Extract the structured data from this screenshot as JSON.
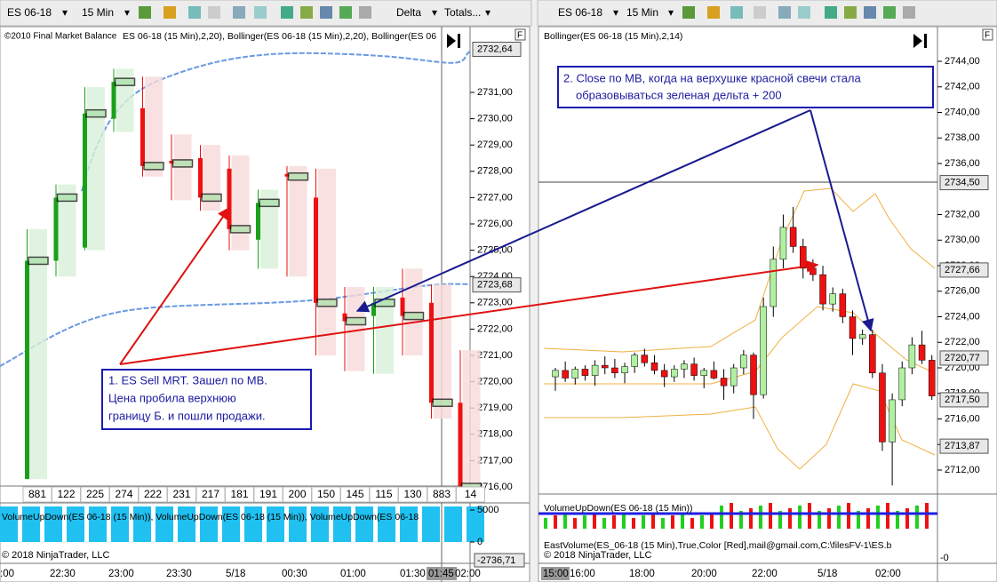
{
  "toolbar_left": {
    "instrument": "ES 06-18",
    "interval": "15 Min",
    "items": [
      "Delta",
      "Totals..."
    ]
  },
  "toolbar_right": {
    "instrument": "ES 06-18",
    "interval": "15 Min"
  },
  "left_pane": {
    "header": "©2010 Final Market Balance",
    "indicator": "ES 06-18 (15 Min),2,20), Bollinger(ES 06-18 (15 Min),2,20), Bollinger(ES 06",
    "panel_flag": "F",
    "yticks": [
      {
        "value": 2716,
        "label": "2716,00"
      },
      {
        "value": 2717,
        "label": "2717,00"
      },
      {
        "value": 2718,
        "label": "2718,00"
      },
      {
        "value": 2719,
        "label": "2719,00"
      },
      {
        "value": 2720,
        "label": "2720,00"
      },
      {
        "value": 2721,
        "label": "2721,00"
      },
      {
        "value": 2722,
        "label": "2722,00"
      },
      {
        "value": 2723,
        "label": "2723,00"
      },
      {
        "value": 2724,
        "label": "2724,00"
      },
      {
        "value": 2725,
        "label": "2725,00"
      },
      {
        "value": 2726,
        "label": "2726,00"
      },
      {
        "value": 2727,
        "label": "2727,00"
      },
      {
        "value": 2728,
        "label": "2728,00"
      },
      {
        "value": 2729,
        "label": "2729,00"
      },
      {
        "value": 2730,
        "label": "2730,00"
      },
      {
        "value": 2731,
        "label": "2731,00"
      }
    ],
    "markers": [
      {
        "value": 2732.64,
        "label": "2732,64"
      },
      {
        "value": 2723.68,
        "label": "2723,68"
      }
    ],
    "candles": [
      [
        2716.3,
        2725.8,
        2716.3,
        2724.6
      ],
      [
        2724.6,
        2727.5,
        2724.0,
        2727.0
      ],
      [
        2725.1,
        2731.2,
        2725.0,
        2730.2
      ],
      [
        2730.0,
        2731.9,
        2729.5,
        2731.4
      ],
      [
        2730.4,
        2731.6,
        2727.8,
        2728.2
      ],
      [
        2728.4,
        2729.4,
        2726.9,
        2728.3
      ],
      [
        2728.5,
        2729.0,
        2726.5,
        2727.0
      ],
      [
        2728.1,
        2728.6,
        2725.0,
        2725.8
      ],
      [
        2725.4,
        2727.3,
        2724.3,
        2726.8
      ],
      [
        2727.9,
        2728.2,
        2724.0,
        2727.8
      ],
      [
        2727.0,
        2728.1,
        2721.0,
        2723.0
      ],
      [
        2722.6,
        2723.6,
        2720.4,
        2722.3
      ],
      [
        2722.5,
        2723.6,
        2720.3,
        2723.0
      ],
      [
        2723.2,
        2724.3,
        2721.0,
        2722.5
      ],
      [
        2723.0,
        2723.7,
        2718.6,
        2719.2
      ],
      [
        2719.2,
        2721.2,
        2716.0,
        2716.0
      ]
    ],
    "volumes": [
      881,
      122,
      225,
      274,
      222,
      231,
      217,
      181,
      191,
      200,
      150,
      145,
      115,
      130,
      883,
      14
    ],
    "volume_indicator": "VolumeUpDown(ES 06-18 (15 Min)), VolumeUpDown(ES 06-18 (15 Min)), VolumeUpDown(ES 06-18",
    "volume_ticks": [
      5000,
      0
    ],
    "bottom_marker": "-2736,71",
    "copyright": "© 2018 NinjaTrader, LLC",
    "times": [
      ":00",
      "22:30",
      "23:00",
      "23:30",
      "5/18",
      "00:30",
      "01:00",
      "01:30",
      "01:45",
      "02:00"
    ]
  },
  "right_pane": {
    "indicator": "Bollinger(ES 06-18 (15 Min),2,14)",
    "panel_flag": "F",
    "yticks": [
      {
        "value": 2712,
        "label": "2712,00"
      },
      {
        "value": 2714,
        "label": "2714,00"
      },
      {
        "value": 2716,
        "label": "2716,00"
      },
      {
        "value": 2718,
        "label": "2718,00"
      },
      {
        "value": 2720,
        "label": "2720,00"
      },
      {
        "value": 2722,
        "label": "2722,00"
      },
      {
        "value": 2724,
        "label": "2724,00"
      },
      {
        "value": 2726,
        "label": "2726,00"
      },
      {
        "value": 2728,
        "label": "2728,00"
      },
      {
        "value": 2730,
        "label": "2730,00"
      },
      {
        "value": 2732,
        "label": "2732,00"
      },
      {
        "value": 2736,
        "label": "2736,00"
      },
      {
        "value": 2738,
        "label": "2738,00"
      },
      {
        "value": 2740,
        "label": "2740,00"
      },
      {
        "value": 2742,
        "label": "2742,00"
      },
      {
        "value": 2744,
        "label": "2744,00"
      }
    ],
    "markers": [
      {
        "value": 2734.5,
        "label": "2734,50"
      },
      {
        "value": 2727.66,
        "label": "2727,66"
      },
      {
        "value": 2720.77,
        "label": "2720,77"
      },
      {
        "value": 2717.5,
        "label": "2717,50"
      },
      {
        "value": 2713.87,
        "label": "2713,87"
      }
    ],
    "candles": [
      [
        2719.3,
        2720.0,
        2718.2,
        2719.8
      ],
      [
        2719.8,
        2720.5,
        2718.9,
        2719.2
      ],
      [
        2719.2,
        2720.1,
        2718.7,
        2719.9
      ],
      [
        2719.9,
        2720.2,
        2719.0,
        2719.4
      ],
      [
        2719.4,
        2720.6,
        2718.6,
        2720.2
      ],
      [
        2720.2,
        2720.9,
        2719.5,
        2720.0
      ],
      [
        2720.0,
        2720.7,
        2719.2,
        2719.6
      ],
      [
        2719.6,
        2720.4,
        2718.8,
        2720.1
      ],
      [
        2720.1,
        2721.2,
        2719.6,
        2721.0
      ],
      [
        2721.0,
        2721.5,
        2720.1,
        2720.4
      ],
      [
        2720.4,
        2721.0,
        2719.5,
        2719.8
      ],
      [
        2719.8,
        2720.3,
        2718.5,
        2719.3
      ],
      [
        2719.3,
        2720.2,
        2718.9,
        2719.9
      ],
      [
        2719.9,
        2720.6,
        2719.2,
        2720.3
      ],
      [
        2720.3,
        2720.8,
        2719.0,
        2719.4
      ],
      [
        2719.4,
        2720.0,
        2718.4,
        2719.8
      ],
      [
        2719.8,
        2720.5,
        2719.1,
        2719.2
      ],
      [
        2719.2,
        2719.9,
        2717.5,
        2718.6
      ],
      [
        2718.6,
        2720.3,
        2718.0,
        2720.0
      ],
      [
        2720.0,
        2721.4,
        2719.5,
        2721.0
      ],
      [
        2721.0,
        2721.2,
        2716.0,
        2717.9
      ],
      [
        2717.9,
        2725.5,
        2717.6,
        2724.8
      ],
      [
        2724.8,
        2729.5,
        2724.0,
        2728.5
      ],
      [
        2728.5,
        2732.0,
        2727.8,
        2731.0
      ],
      [
        2731.0,
        2732.6,
        2729.0,
        2729.5
      ],
      [
        2729.5,
        2730.1,
        2727.0,
        2727.8
      ],
      [
        2727.8,
        2728.5,
        2726.8,
        2727.3
      ],
      [
        2727.3,
        2728.0,
        2724.5,
        2725.0
      ],
      [
        2725.0,
        2726.3,
        2724.4,
        2725.8
      ],
      [
        2725.8,
        2726.2,
        2723.5,
        2724.0
      ],
      [
        2724.0,
        2724.5,
        2721.0,
        2722.3
      ],
      [
        2722.3,
        2723.0,
        2721.8,
        2722.6
      ],
      [
        2722.6,
        2723.0,
        2719.2,
        2719.6
      ],
      [
        2719.6,
        2720.3,
        2713.5,
        2714.2
      ],
      [
        2714.2,
        2718.0,
        2710.8,
        2717.5
      ],
      [
        2717.5,
        2720.5,
        2717.0,
        2720.0
      ],
      [
        2720.0,
        2722.4,
        2719.5,
        2721.8
      ],
      [
        2721.8,
        2722.9,
        2720.3,
        2720.6
      ],
      [
        2720.6,
        2721.0,
        2717.5,
        2717.8
      ]
    ],
    "volume_indicator": "VolumeUpDown(ES 06-18 (15 Min))",
    "east_volume": "EastVolume(ES_06-18 (15 Min),True,Color [Red],mail@gmail.com,C:\\filesFV-1\\ES.b",
    "copyright": "© 2018 NinjaTrader, LLC",
    "volume_tick": "-0",
    "times": [
      "15:00",
      "16:00",
      "18:00",
      "20:00",
      "22:00",
      "5/18",
      "02:00"
    ]
  },
  "annotations": [
    {
      "lines": [
        "1. ES Sell MRT. Зашел по MB.",
        "Цена пробила верхнюю",
        "границу Б. и пошли продажи."
      ]
    },
    {
      "lines": [
        "2. Close по MB, когда на верхушке красной свечи стала",
        "образовываться зеленая дельта   + 200"
      ]
    }
  ]
}
